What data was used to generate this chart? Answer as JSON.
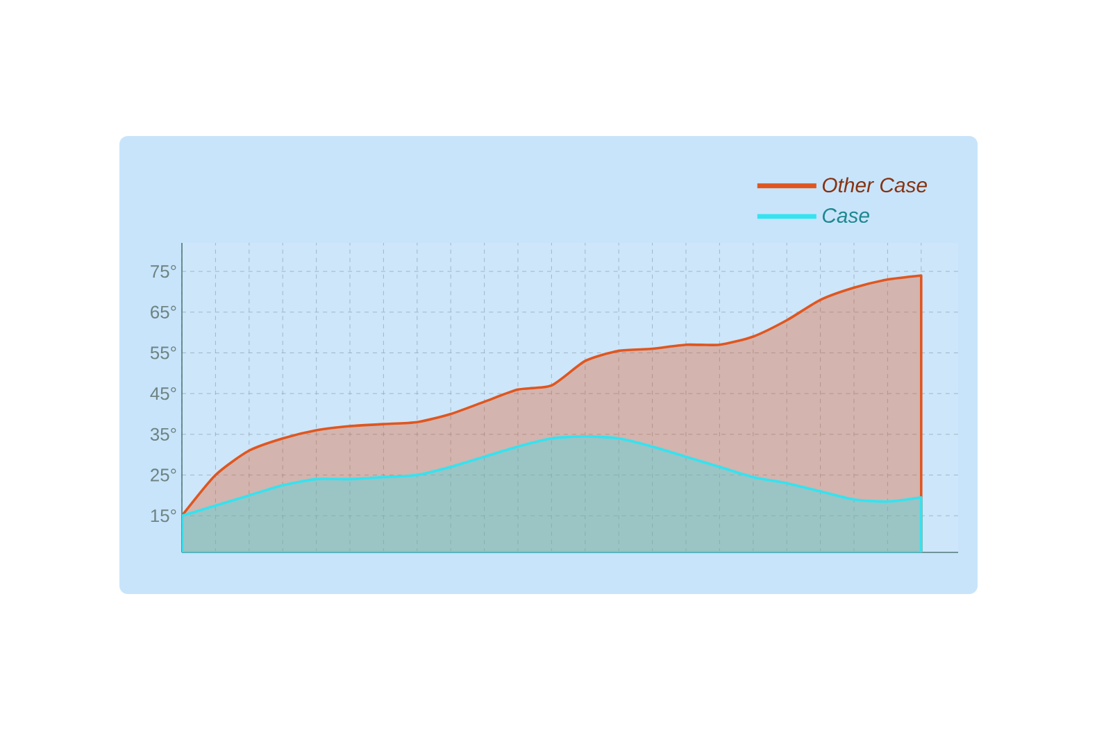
{
  "chart_data": {
    "type": "area",
    "categories": [
      null,
      null,
      null,
      null,
      null,
      null,
      null,
      null,
      null,
      null,
      null,
      null,
      null,
      null,
      null,
      null,
      null,
      null,
      null,
      null,
      null,
      null,
      null
    ],
    "ylim": [
      6,
      82
    ],
    "yticks": [
      {
        "value": 15,
        "label": "15°"
      },
      {
        "value": 25,
        "label": "25°"
      },
      {
        "value": 35,
        "label": "35°"
      },
      {
        "value": 45,
        "label": "45°"
      },
      {
        "value": 55,
        "label": "55°"
      },
      {
        "value": 65,
        "label": "65°"
      },
      {
        "value": 75,
        "label": "75°"
      }
    ],
    "series": [
      {
        "name": "Other Case",
        "color": "#e0561f",
        "values": [
          15,
          25,
          31,
          34,
          36,
          37,
          37.5,
          38,
          40,
          43,
          46,
          47,
          53,
          55.5,
          56,
          57,
          57,
          59,
          63,
          68,
          71,
          73,
          74
        ]
      },
      {
        "name": "Case",
        "color": "#33e3f0",
        "values": [
          15,
          17.5,
          20,
          22.5,
          24,
          24,
          24.5,
          25,
          27,
          29.5,
          32,
          34,
          34.5,
          34,
          32,
          29.5,
          27,
          24.5,
          23,
          21,
          19,
          18.5,
          19.5
        ]
      }
    ],
    "grid": true,
    "legend": "top right",
    "tick_labels": "y"
  }
}
